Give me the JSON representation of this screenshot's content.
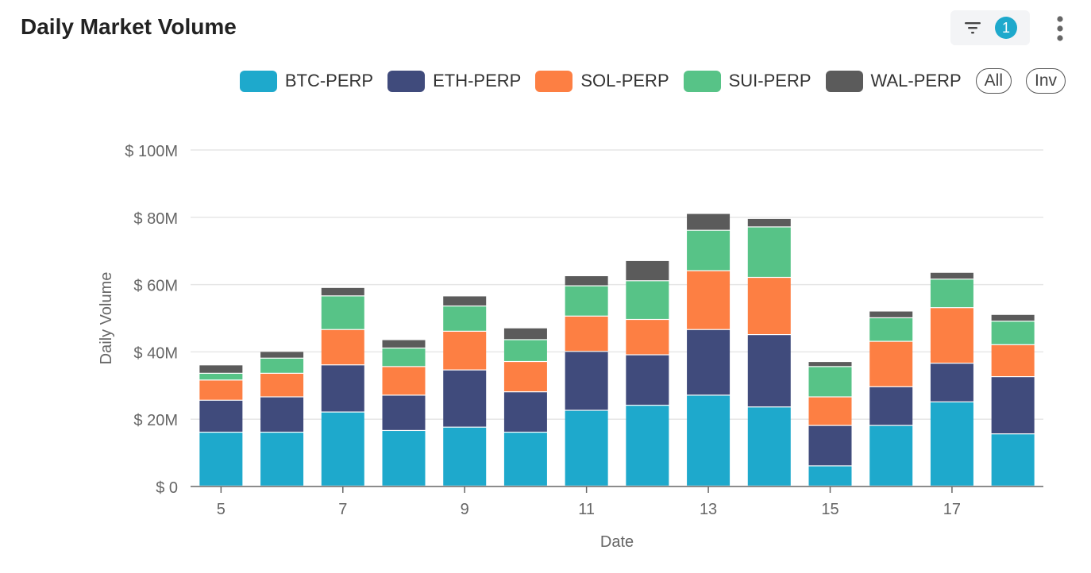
{
  "header": {
    "title": "Daily Market Volume",
    "filter_count": "1",
    "accent": "#1ea9cc"
  },
  "controls": {
    "all_label": "All",
    "inv_label": "Inv"
  },
  "chart_data": {
    "type": "bar",
    "stacked": true,
    "title": "Daily Market Volume",
    "xlabel": "Date",
    "ylabel": "Daily Volume",
    "ylim": [
      0,
      100
    ],
    "y_unit_prefix": "$ ",
    "y_unit_suffix": "M",
    "yticks": [
      0,
      20,
      40,
      60,
      80,
      100
    ],
    "y_tick_labels": [
      "$ 0",
      "$ 20M",
      "$ 40M",
      "$ 60M",
      "$ 80M",
      "$ 100M"
    ],
    "categories": [
      "5",
      "6",
      "7",
      "8",
      "9",
      "10",
      "11",
      "12",
      "13",
      "14",
      "15",
      "16",
      "17",
      "18"
    ],
    "x_tick_labels": [
      "5",
      "7",
      "9",
      "11",
      "13",
      "15",
      "17"
    ],
    "grid": true,
    "legend_position": "top-right",
    "series": [
      {
        "name": "BTC-PERP",
        "color": "#1ea9cc",
        "values": [
          16,
          16,
          22,
          16.5,
          17.5,
          16,
          22.5,
          24,
          27,
          23.5,
          6,
          18,
          25,
          15.5
        ]
      },
      {
        "name": "ETH-PERP",
        "color": "#404b7c",
        "values": [
          9.5,
          10.5,
          14,
          10.5,
          17,
          12,
          17.5,
          15,
          19.5,
          21.5,
          12,
          11.5,
          11.5,
          17
        ]
      },
      {
        "name": "SOL-PERP",
        "color": "#fd7f43",
        "values": [
          6,
          7,
          10.5,
          8.5,
          11.5,
          9,
          10.5,
          10.5,
          17.5,
          17,
          8.5,
          13.5,
          16.5,
          9.5
        ]
      },
      {
        "name": "SUI-PERP",
        "color": "#57c387",
        "values": [
          2,
          4.5,
          10,
          5.5,
          7.5,
          6.5,
          9,
          11.5,
          12,
          15,
          9,
          7,
          8.5,
          7
        ]
      },
      {
        "name": "WAL-PERP",
        "color": "#5b5b5b",
        "values": [
          2.5,
          2,
          2.5,
          2.5,
          3,
          3.5,
          3,
          6,
          5,
          2.5,
          1.5,
          2,
          2,
          2
        ]
      }
    ]
  }
}
